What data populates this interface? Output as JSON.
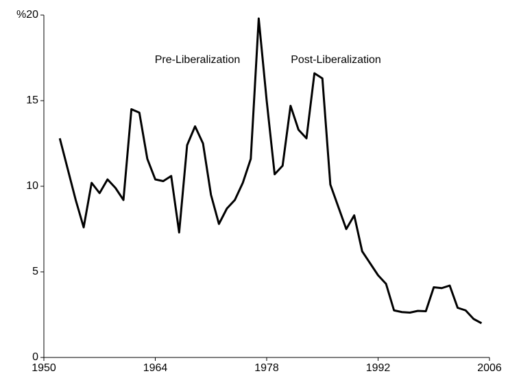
{
  "chart_data": {
    "type": "line",
    "annotations": [
      "Pre-Liberalization",
      "Post-Liberalization"
    ],
    "x": [
      1952,
      1953,
      1954,
      1955,
      1956,
      1957,
      1958,
      1959,
      1960,
      1961,
      1962,
      1963,
      1964,
      1965,
      1966,
      1967,
      1968,
      1969,
      1970,
      1971,
      1972,
      1973,
      1974,
      1975,
      1976,
      1977,
      1978,
      1979,
      1980,
      1981,
      1982,
      1983,
      1984,
      1985,
      1986,
      1987,
      1988,
      1989,
      1990,
      1991,
      1992,
      1993,
      1994,
      1995,
      1996,
      1997,
      1998,
      1999,
      2000,
      2001,
      2002,
      2003,
      2004,
      2005
    ],
    "series": [
      {
        "color": "#000000",
        "values": [
          12.8,
          11,
          9.2,
          7.6,
          10.2,
          9.6,
          10.4,
          9.9,
          9.2,
          14.5,
          14.3,
          11.6,
          10.4,
          10.3,
          10.6,
          7.3,
          12.4,
          13.5,
          12.5,
          9.5,
          7.8,
          8.7,
          9.2,
          10.2,
          11.6,
          19.8,
          15.0,
          10.7,
          11.2,
          14.7,
          13.3,
          12.8,
          16.6,
          16.3,
          10.1,
          8.8,
          7.5,
          8.3,
          6.2,
          5.5,
          4.8,
          4.3,
          2.75,
          2.65,
          2.62,
          2.72,
          2.7,
          4.1,
          4.05,
          4.2,
          2.9,
          2.75,
          2.25,
          2.0
        ]
      }
    ],
    "xlim": [
      1950,
      2006
    ],
    "xticks": [
      1950,
      1964,
      1978,
      1992,
      2006
    ],
    "ylim": [
      0,
      20
    ],
    "yticks": [
      0,
      5,
      10,
      15,
      {
        "value": 20,
        "label": "%20"
      }
    ]
  }
}
